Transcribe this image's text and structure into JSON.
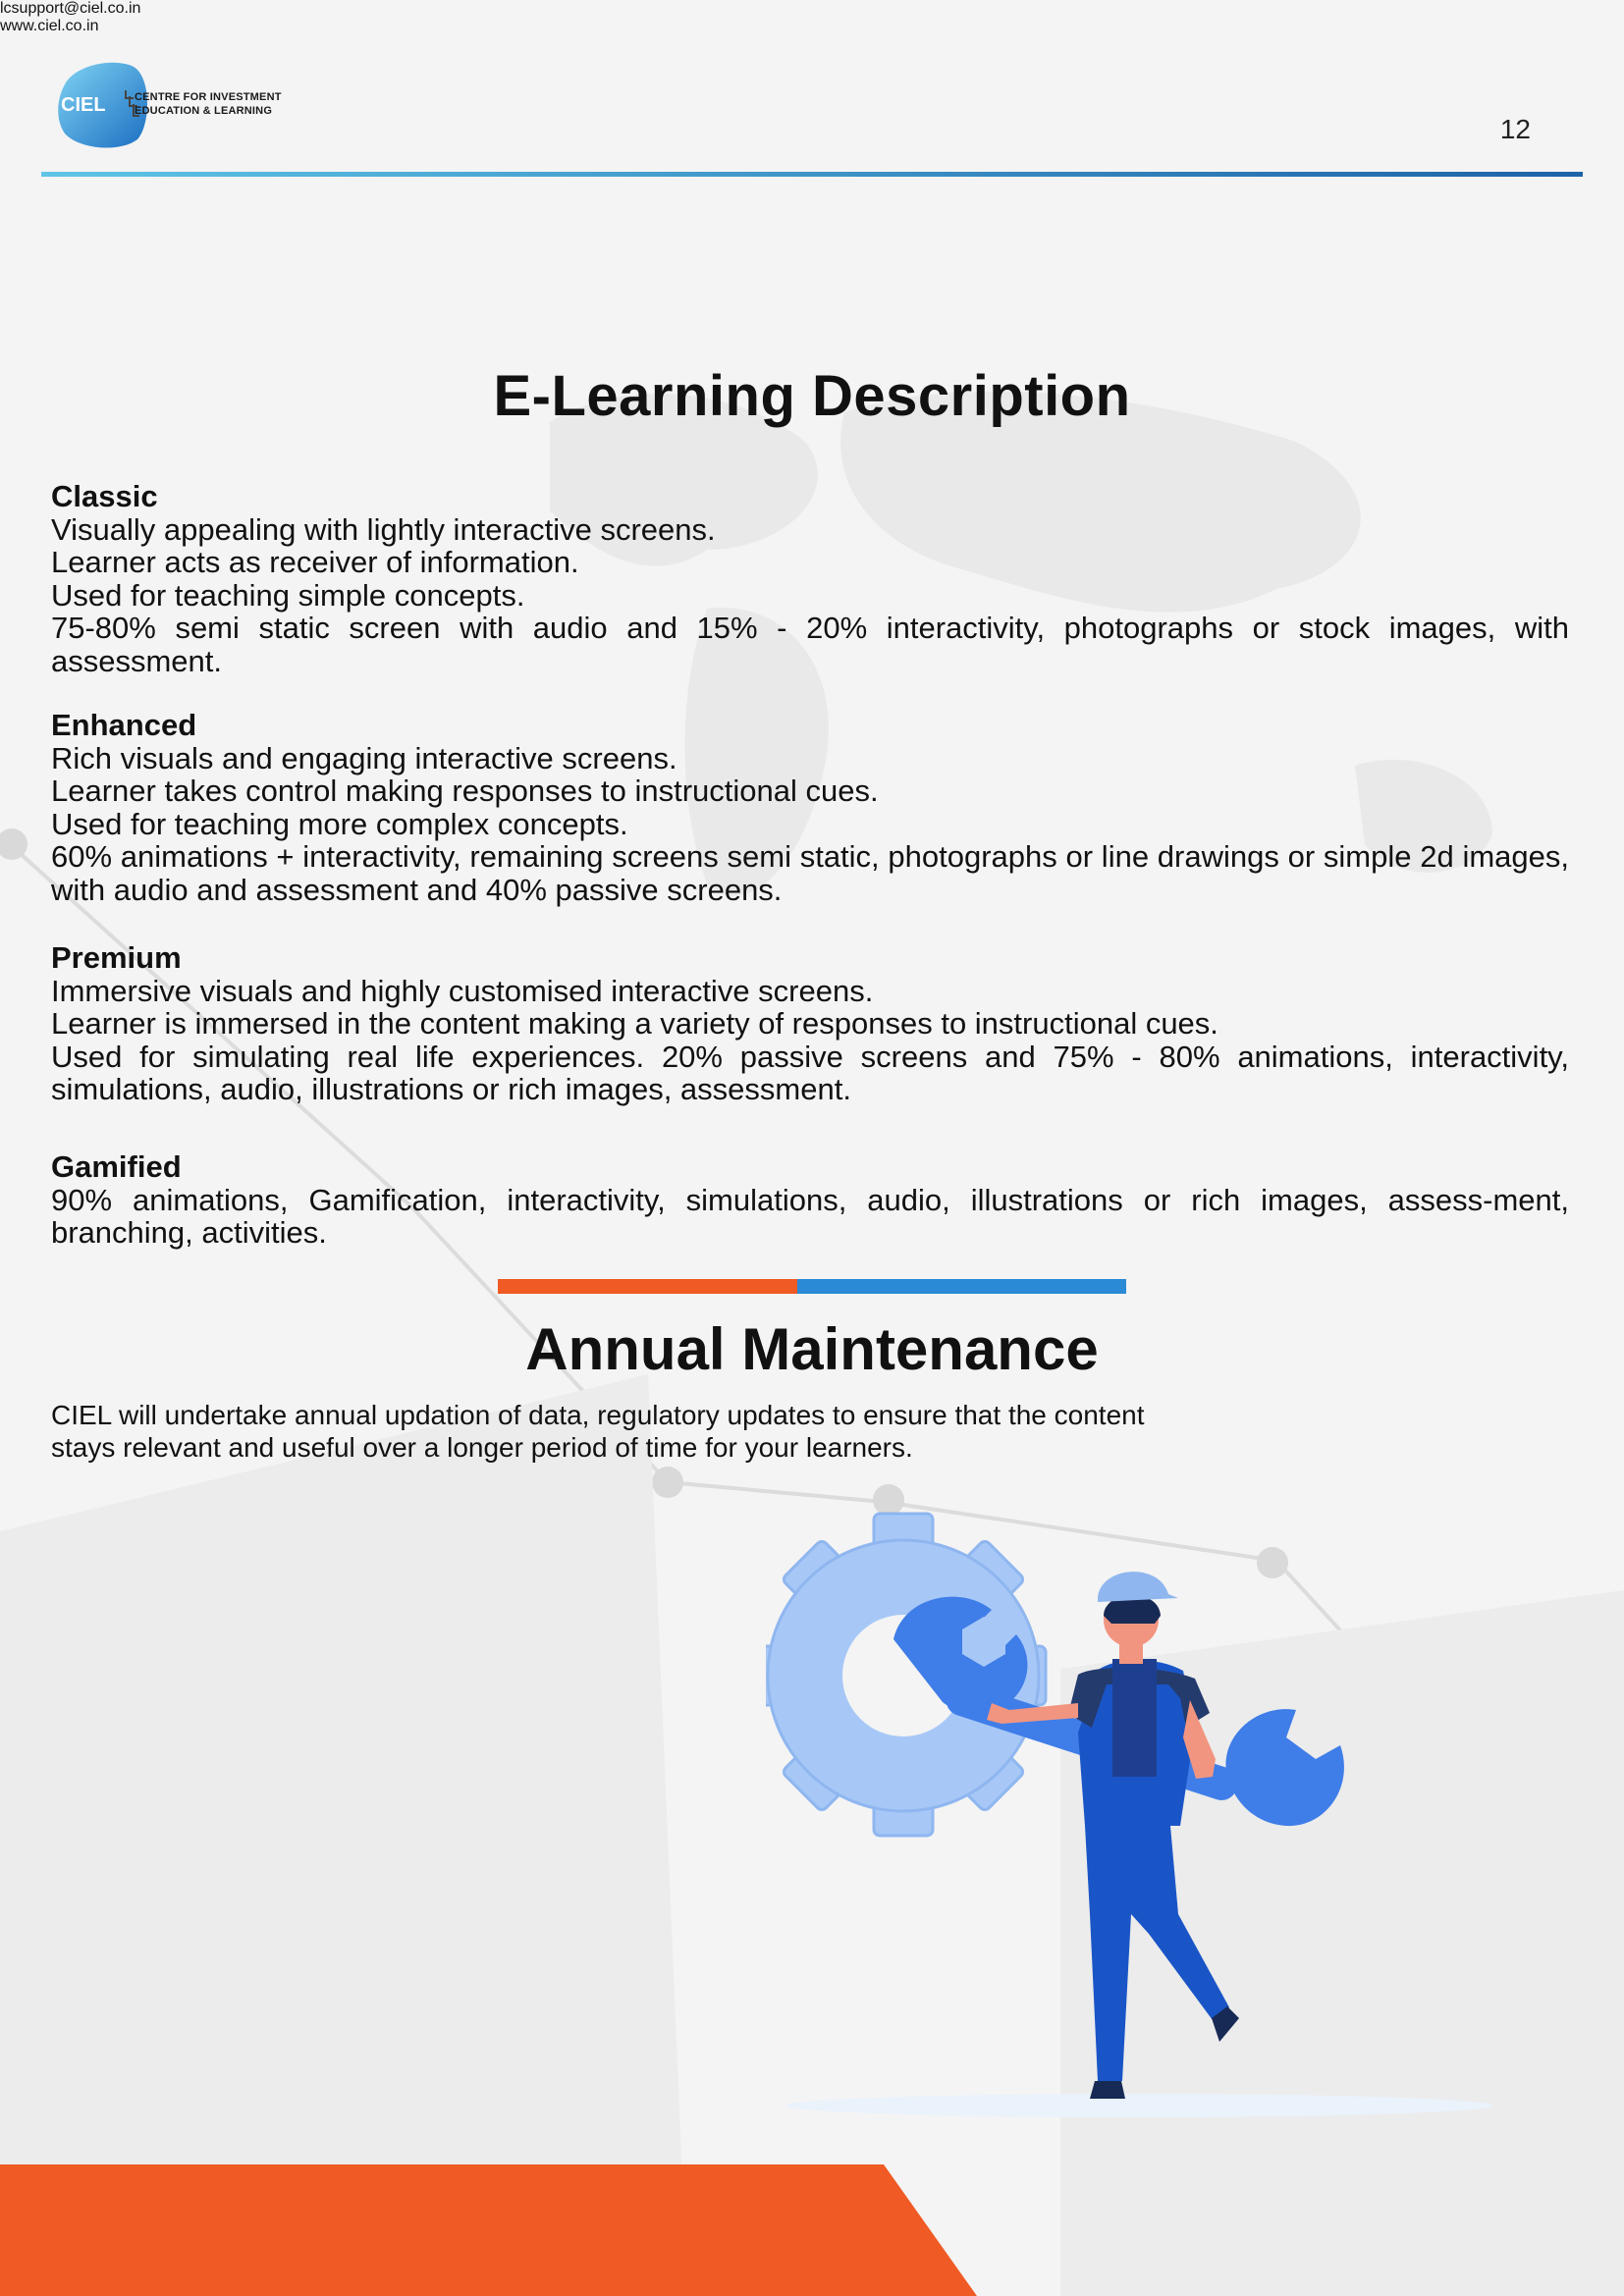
{
  "header": {
    "logo_mark": "CIEL",
    "org_line1": "CENTRE FOR INVESTMENT",
    "org_line2": "EDUCATION & LEARNING",
    "page_number": "12"
  },
  "elearning": {
    "title": "E-Learning Description",
    "sections": [
      {
        "heading": "Classic",
        "lines": [
          "Visually appealing with lightly interactive screens.",
          "Learner acts as receiver of information.",
          "Used for teaching simple concepts.",
          "75-80% semi static screen with audio and 15% - 20% interactivity, photographs or stock images, with assessment."
        ]
      },
      {
        "heading": "Enhanced",
        "lines": [
          "Rich visuals and engaging interactive screens.",
          "Learner takes control making responses to instructional cues.",
          "Used for teaching more complex concepts.",
          "60% animations + interactivity, remaining screens semi static, photographs or line drawings or simple 2d images, with audio and assessment and 40% passive screens."
        ]
      },
      {
        "heading": "Premium",
        "lines": [
          "Immersive visuals and highly customised interactive screens.",
          "Learner is immersed in the content making a variety of responses to instructional cues.",
          "Used for simulating real life experiences. 20% passive screens and 75% - 80% animations, interactivity, simulations, audio, illustrations or rich images, assessment."
        ]
      },
      {
        "heading": "Gamified",
        "lines": [
          "90% animations, Gamification, interactivity, simulations, audio, illustrations or rich images, assess-ment, branching, activities."
        ]
      }
    ]
  },
  "maintenance": {
    "title": "Annual Maintenance",
    "text": "CIEL will undertake annual updation of data, regulatory updates to ensure that the content stays relevant and useful over a longer period of time for your learners."
  },
  "footer": {
    "email": "lcsupport@ciel.co.in",
    "website": "www.ciel.co.in"
  },
  "colors": {
    "accent_orange": "#f05a24",
    "accent_blue": "#2a8ad6",
    "header_gradient_start": "#5fc4e6",
    "header_gradient_end": "#1d63a8"
  },
  "icons": [
    "gear-icon",
    "wrench-icon",
    "worker-illustration"
  ]
}
